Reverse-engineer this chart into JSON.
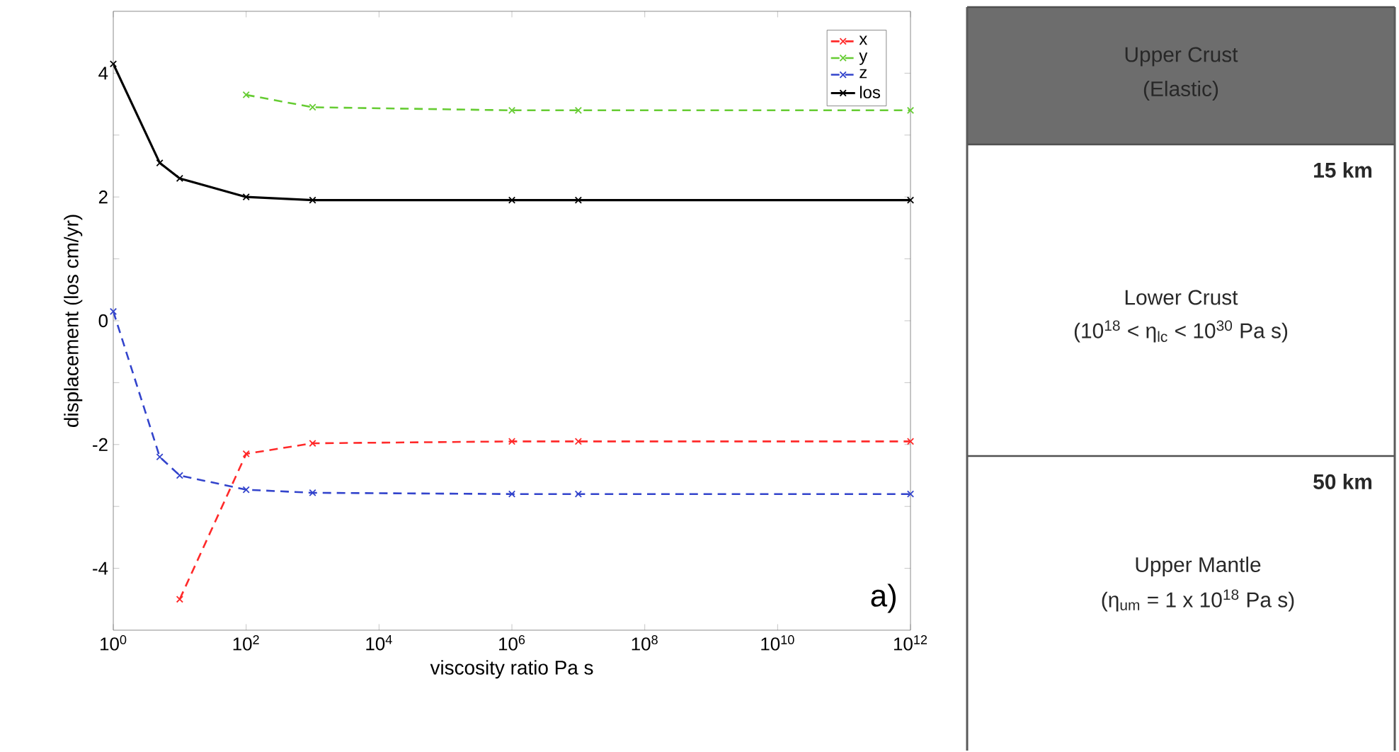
{
  "chart_data": [
    {
      "type": "line",
      "xlabel": "viscosity ratio Pa s",
      "ylabel": "displacement (los cm/yr)",
      "log": "x",
      "x": [
        1,
        5,
        10,
        100,
        1000,
        1000000,
        10000000,
        1000000000000
      ],
      "series": [
        {
          "name": "x",
          "color": "#ff2a2a",
          "line_style": "dashed",
          "values": [
            null,
            null,
            -4.5,
            -2.15,
            -1.98,
            -1.95,
            -1.95,
            -1.95
          ]
        },
        {
          "name": "y",
          "color": "#66cc33",
          "line_style": "dashed",
          "values": [
            null,
            null,
            null,
            3.65,
            3.45,
            3.4,
            3.4,
            3.4
          ]
        },
        {
          "name": "z",
          "color": "#3344cc",
          "line_style": "dashed",
          "values": [
            0.15,
            -2.2,
            -2.5,
            -2.73,
            -2.78,
            -2.8,
            -2.8,
            -2.8
          ]
        },
        {
          "name": "los",
          "color": "#000000",
          "line_style": "solid",
          "values": [
            4.15,
            2.55,
            2.3,
            2.0,
            1.95,
            1.95,
            1.95,
            1.95
          ]
        }
      ],
      "xlim": [
        1,
        1000000000000
      ],
      "ylim": [
        -5,
        5
      ],
      "xticks": [
        {
          "value": 1,
          "label": "10$^{0}$"
        },
        {
          "value": 100,
          "label": "10$^{2}$"
        },
        {
          "value": 10000,
          "label": "10$^{4}$"
        },
        {
          "value": 1000000,
          "label": "10$^{6}$"
        },
        {
          "value": 100000000,
          "label": "10$^{8}$"
        },
        {
          "value": 10000000000,
          "label": "10$^{10}$"
        },
        {
          "value": 1000000000000,
          "label": "10$^{12}$"
        }
      ],
      "yticks": [
        -4,
        {
          "value": -3,
          "label": null
        },
        -2,
        {
          "value": -1,
          "label": null
        },
        0,
        {
          "value": 1,
          "label": null
        },
        2,
        {
          "value": 3,
          "label": null
        },
        4
      ],
      "legend": "top right",
      "marker": "cross",
      "annotations": [
        "a)"
      ]
    },
    {
      "type": "other",
      "categories": [
        "Upper Crust",
        "Lower Crust",
        "Upper Mantle"
      ],
      "colors": [
        "#6d6d6d",
        "#ffffff",
        "#ffffff"
      ],
      "annotations": [
        "(Elastic)",
        "15 km",
        "(10$^{18}$ < η$_{lc}$ < 10$^{30}$ Pa s)",
        "50 km",
        "(η$_{um}$ = 1 x 10$^{18}$ Pa s)"
      ]
    }
  ]
}
